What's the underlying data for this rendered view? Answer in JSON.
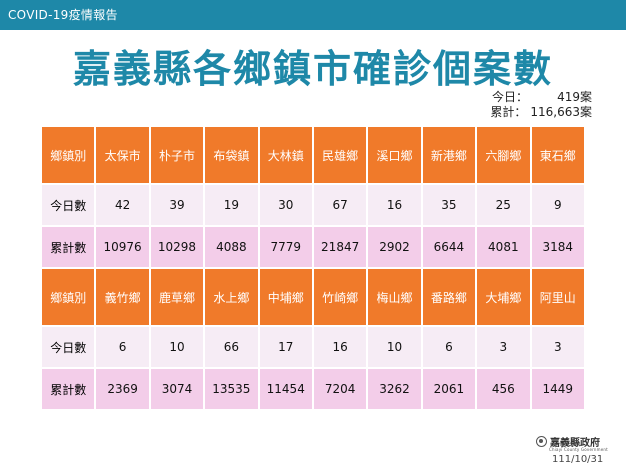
{
  "header": {
    "bar_text": "COVID-19疫情報告"
  },
  "title": "嘉義縣各鄉鎮市確診個案數",
  "summary": {
    "today_label": "今日：",
    "today_value": "419案",
    "total_label": "累計：",
    "total_value": "116,663案"
  },
  "rows": {
    "header_label": "鄉鎮別",
    "today_label": "今日數",
    "total_label": "累計數"
  },
  "groups": [
    {
      "towns": [
        "太保市",
        "朴子市",
        "布袋鎮",
        "大林鎮",
        "民雄鄉",
        "溪口鄉",
        "新港鄉",
        "六腳鄉",
        "東石鄉"
      ],
      "today": [
        "42",
        "39",
        "19",
        "30",
        "67",
        "16",
        "35",
        "25",
        "9"
      ],
      "total": [
        "10976",
        "10298",
        "4088",
        "7779",
        "21847",
        "2902",
        "6644",
        "4081",
        "3184"
      ]
    },
    {
      "towns": [
        "義竹鄉",
        "鹿草鄉",
        "水上鄉",
        "中埔鄉",
        "竹崎鄉",
        "梅山鄉",
        "番路鄉",
        "大埔鄉",
        "阿里山"
      ],
      "today": [
        "6",
        "10",
        "66",
        "17",
        "16",
        "10",
        "6",
        "3",
        "3"
      ],
      "total": [
        "2369",
        "3074",
        "13535",
        "11454",
        "7204",
        "3262",
        "2061",
        "456",
        "1449"
      ]
    }
  ],
  "footer": {
    "logo_text": "嘉義縣政府",
    "logo_sub": "Chiayi County Government",
    "date": "111/10/31"
  },
  "colors": {
    "bar": "#1e88a8",
    "title": "#1e88a8",
    "header_cell": "#f07a2a",
    "today_cell": "#f6ecf5",
    "total_cell": "#f3cde9"
  }
}
